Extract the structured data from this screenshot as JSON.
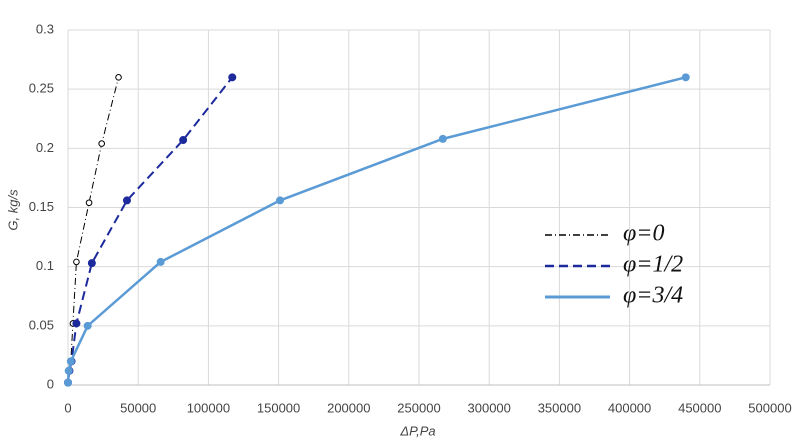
{
  "chart_data": {
    "type": "line",
    "x_label": "ΔP,Pa",
    "y_label": "G, kg/s",
    "xlim": [
      0,
      500000
    ],
    "xticks": [
      0,
      50000,
      100000,
      150000,
      200000,
      250000,
      300000,
      350000,
      400000,
      450000,
      500000
    ],
    "ylim": [
      0,
      0.3
    ],
    "yticks": [
      0,
      0.05,
      0.1,
      0.15,
      0.2,
      0.25,
      0.3
    ],
    "grid": true,
    "legend": "right",
    "series": [
      {
        "name": "φ=0",
        "color": "#000000",
        "dash": "7 3 1 3",
        "marker": "open",
        "width": 1,
        "x": [
          0,
          1000,
          2000,
          3500,
          6000,
          15000,
          24000,
          36000
        ],
        "values": [
          0.002,
          0.012,
          0.02,
          0.052,
          0.104,
          0.154,
          0.204,
          0.26
        ]
      },
      {
        "name": "φ=1/2",
        "color": "#1c2a9c",
        "dash": "9 5",
        "marker": "filled",
        "width": 2,
        "x": [
          0,
          1000,
          2500,
          6000,
          17000,
          42000,
          82000,
          117000
        ],
        "values": [
          0.002,
          0.012,
          0.02,
          0.052,
          0.103,
          0.156,
          0.207,
          0.26
        ]
      },
      {
        "name": "φ=3/4",
        "color": "#5b9bd5",
        "dash": "none",
        "marker": "filled",
        "width": 2.5,
        "x": [
          0,
          500,
          2000,
          14000,
          66000,
          151000,
          267000,
          440000
        ],
        "values": [
          0.002,
          0.012,
          0.02,
          0.05,
          0.104,
          0.156,
          0.208,
          0.26
        ]
      }
    ]
  }
}
